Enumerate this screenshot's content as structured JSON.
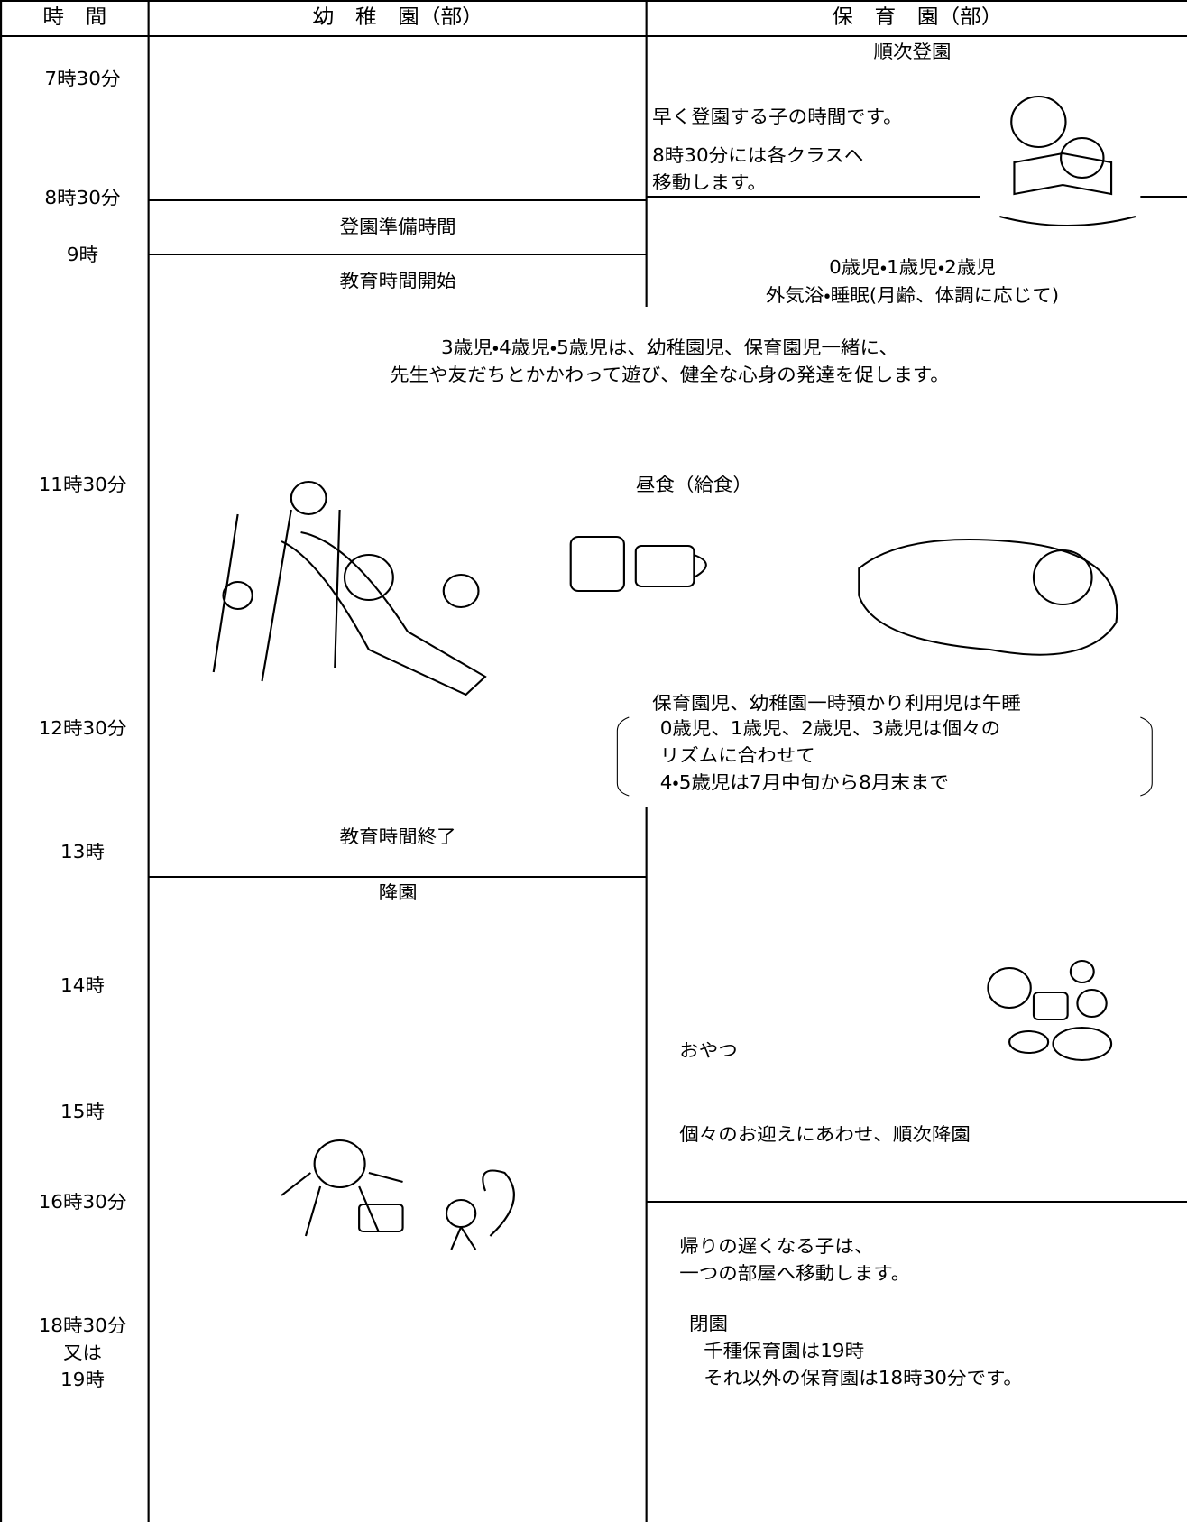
{
  "header": {
    "time": "時　間",
    "kindergarten": "幼　稚　園（部）",
    "nursery": "保　育　園（部）"
  },
  "times": [
    "7時30分",
    "8時30分",
    "9時",
    "11時30分",
    "12時30分",
    "13時",
    "14時",
    "15時",
    "16時30分",
    "18時30分",
    "又は",
    "19時"
  ],
  "kindergarten": [
    "登園準備時間",
    "教育時間開始",
    "教育時間終了",
    "降園"
  ],
  "nursery": [
    "順次登園",
    "早く登園する子の時間です。",
    "8時30分には各クラスへ",
    "移動します。",
    "0歳児・1歳児・2歳児",
    "外気浴・睡眠(月齢、体調に応じて)",
    "おやつ",
    "個々のお迎えにあわせ、順次降園",
    "帰りの遅くなる子は、",
    "一つの部屋へ移動します。",
    "閉園",
    "千種保育園は19時",
    "それ以外の保育園は18時30分です。"
  ],
  "shared": [
    "3歳児・4歳児・5歳児は、幼稚園児、保育園児一緒に、",
    "先生や友だちとかかわって遊び、健全な心身の発達を促します。",
    "昼食（給食）",
    "保育園児、幼稚園一時預かり利用児は午睡",
    "0歳児、1歳児、2歳児、3歳児は個々の",
    "リズムに合わせて",
    "4・5歳児は7月中旬から8月末まで"
  ]
}
